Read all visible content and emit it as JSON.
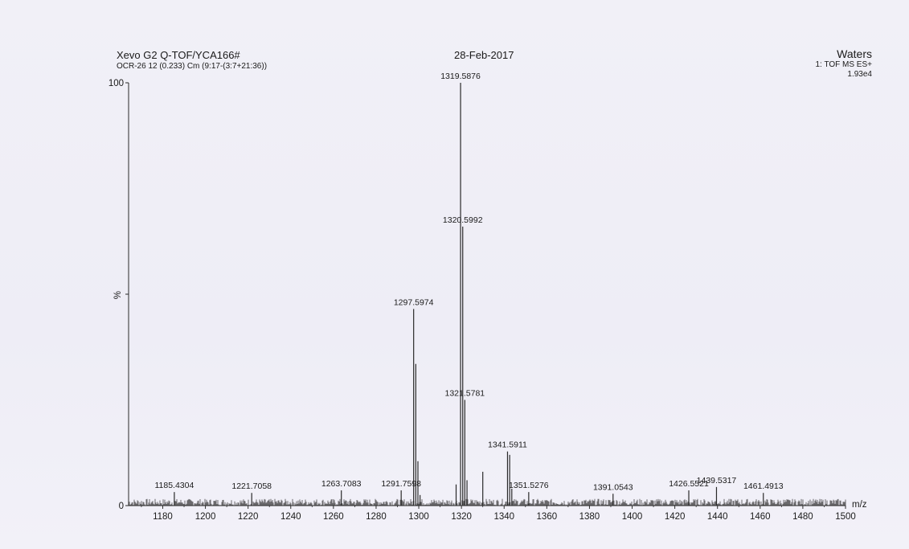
{
  "header": {
    "instrument": "Xevo G2 Q-TOF/YCA166#",
    "sample": "OCR-26 12 (0.233) Cm (9:17-(3:7+21:36))",
    "date": "28-Feb-2017",
    "vendor": "Waters",
    "scan_mode": "1: TOF MS ES+",
    "max_intensity": "1.93e4"
  },
  "chart_data": {
    "type": "bar",
    "title": "",
    "xlabel": "m/z",
    "ylabel": "%",
    "xlim": [
      1164,
      1500
    ],
    "ylim": [
      0,
      100
    ],
    "x_ticks": [
      1180,
      1200,
      1220,
      1240,
      1260,
      1280,
      1300,
      1320,
      1340,
      1360,
      1380,
      1400,
      1420,
      1440,
      1460,
      1480,
      1500
    ],
    "y_ticks": [
      {
        "value": 0,
        "label": "0"
      },
      {
        "value": 50,
        "label": "%"
      },
      {
        "value": 100,
        "label": "100"
      }
    ],
    "peaks": [
      {
        "mz": 1185.4304,
        "intensity": 3.2,
        "label": "1185.4304"
      },
      {
        "mz": 1221.7058,
        "intensity": 3.0,
        "label": "1221.7058"
      },
      {
        "mz": 1263.7083,
        "intensity": 3.6,
        "label": "1263.7083"
      },
      {
        "mz": 1291.7598,
        "intensity": 3.6,
        "label": "1291.7598"
      },
      {
        "mz": 1297.5974,
        "intensity": 46.5,
        "label": "1297.5974"
      },
      {
        "mz": 1298.6,
        "intensity": 33.5,
        "label": ""
      },
      {
        "mz": 1299.6,
        "intensity": 10.5,
        "label": ""
      },
      {
        "mz": 1300.6,
        "intensity": 2.5,
        "label": ""
      },
      {
        "mz": 1317.5,
        "intensity": 5.0,
        "label": ""
      },
      {
        "mz": 1319.5876,
        "intensity": 100,
        "label": "1319.5876"
      },
      {
        "mz": 1320.5992,
        "intensity": 66.0,
        "label": "1320.5992"
      },
      {
        "mz": 1321.5781,
        "intensity": 25.0,
        "label": "1321.5781"
      },
      {
        "mz": 1322.6,
        "intensity": 6.0,
        "label": ""
      },
      {
        "mz": 1330.0,
        "intensity": 8.0,
        "label": ""
      },
      {
        "mz": 1341.5911,
        "intensity": 12.8,
        "label": "1341.5911"
      },
      {
        "mz": 1342.6,
        "intensity": 12.0,
        "label": ""
      },
      {
        "mz": 1343.6,
        "intensity": 4.0,
        "label": ""
      },
      {
        "mz": 1351.5276,
        "intensity": 3.2,
        "label": "1351.5276"
      },
      {
        "mz": 1391.0543,
        "intensity": 2.8,
        "label": "1391.0543"
      },
      {
        "mz": 1426.5521,
        "intensity": 3.6,
        "label": "1426.5521"
      },
      {
        "mz": 1439.5317,
        "intensity": 4.4,
        "label": "1439.5317"
      },
      {
        "mz": 1461.4913,
        "intensity": 3.0,
        "label": "1461.4913"
      }
    ],
    "baseline_noise_max": 1.6,
    "grid": false,
    "legend": "none",
    "colors": {
      "line": "#2a2a2a",
      "text": "#1a1a1a",
      "paper": "#f1f0f7"
    }
  }
}
